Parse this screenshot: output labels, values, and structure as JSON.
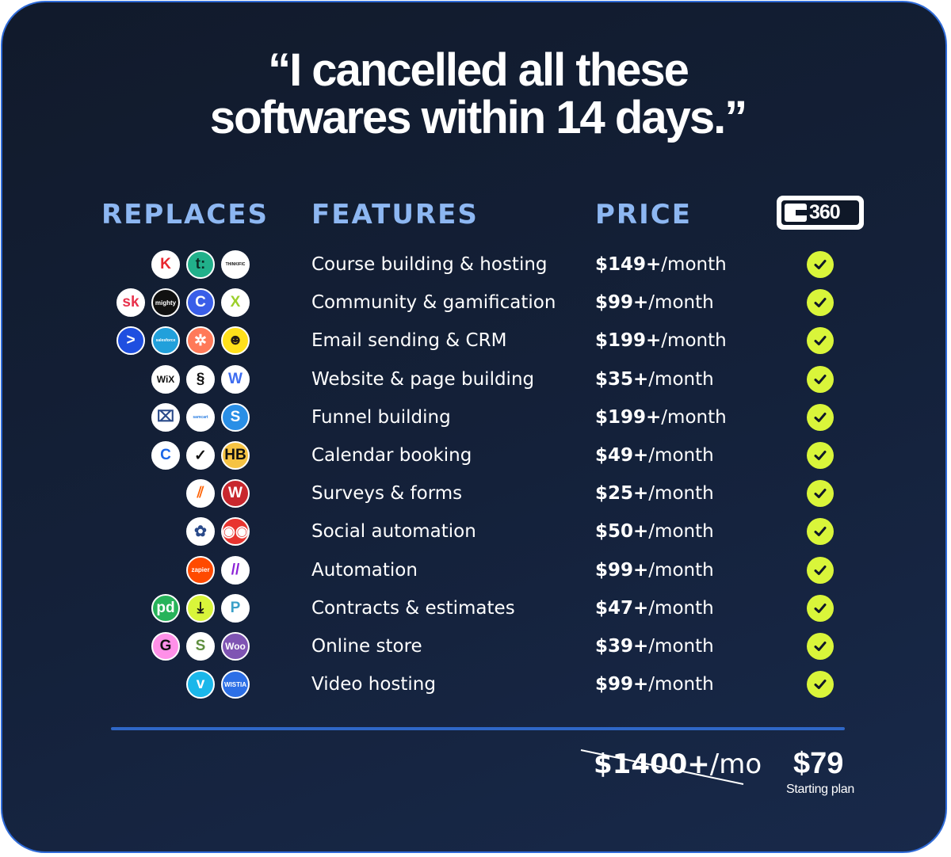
{
  "headline": {
    "line1": "“I cancelled all these",
    "line2": "softwares within 14 days.”"
  },
  "columns": {
    "replaces": "REPLACES",
    "features": "FEATURES",
    "price": "PRICE",
    "brand_logo_text": "360"
  },
  "rows": [
    {
      "feature": "Course building & hosting",
      "price_bold": "$149+",
      "price_unit": "/month",
      "icons": [
        {
          "name": "kajabi-icon",
          "text": "K",
          "bg": "#ffffff",
          "fg": "#e8262e"
        },
        {
          "name": "teachable-icon",
          "text": "t:",
          "bg": "#21b08a",
          "fg": "#0b2b24"
        },
        {
          "name": "thinkific-icon",
          "text": "THINKIFIC",
          "bg": "#ffffff",
          "fg": "#111111"
        }
      ]
    },
    {
      "feature": "Community & gamification",
      "price_bold": "$99+",
      "price_unit": "/month",
      "icons": [
        {
          "name": "skool-icon",
          "text": "sk",
          "bg": "#ffffff",
          "fg": "#e8324c"
        },
        {
          "name": "mighty-icon",
          "text": "mighty",
          "bg": "#111111",
          "fg": "#ffffff"
        },
        {
          "name": "circle-icon",
          "text": "C",
          "bg": "#3a5ee8",
          "fg": "#ffffff"
        },
        {
          "name": "xperiencify-icon",
          "text": "X",
          "bg": "#ffffff",
          "fg": "#9bcf2a"
        }
      ]
    },
    {
      "feature": "Email sending & CRM",
      "price_bold": "$199+",
      "price_unit": "/month",
      "icons": [
        {
          "name": "activecampaign-icon",
          "text": ">",
          "bg": "#1f4fe0",
          "fg": "#ffffff"
        },
        {
          "name": "salesforce-icon",
          "text": "salesforce",
          "bg": "#21a0db",
          "fg": "#ffffff"
        },
        {
          "name": "hubspot-icon",
          "text": "✲",
          "bg": "#ff7a59",
          "fg": "#ffffff"
        },
        {
          "name": "mailchimp-icon",
          "text": "☻",
          "bg": "#ffe01b",
          "fg": "#241c15"
        }
      ]
    },
    {
      "feature": "Website & page building",
      "price_bold": "$35+",
      "price_unit": "/month",
      "icons": [
        {
          "name": "wix-icon",
          "text": "WiX",
          "bg": "#ffffff",
          "fg": "#111111"
        },
        {
          "name": "squarespace-icon",
          "text": "§",
          "bg": "#ffffff",
          "fg": "#111111"
        },
        {
          "name": "webflow-icon",
          "text": "W",
          "bg": "#ffffff",
          "fg": "#3d6cf0"
        }
      ]
    },
    {
      "feature": "Funnel building",
      "price_bold": "$199+",
      "price_unit": "/month",
      "icons": [
        {
          "name": "clickfunnels-icon",
          "text": "⌧",
          "bg": "#ffffff",
          "fg": "#2a4a8a"
        },
        {
          "name": "samcart-icon",
          "text": "samcart",
          "bg": "#ffffff",
          "fg": "#2a7de1"
        },
        {
          "name": "systemeio-icon",
          "text": "S",
          "bg": "#2a8fe6",
          "fg": "#ffffff"
        }
      ]
    },
    {
      "feature": "Calendar booking",
      "price_bold": "$49+",
      "price_unit": "/month",
      "icons": [
        {
          "name": "calendly-icon",
          "text": "C",
          "bg": "#ffffff",
          "fg": "#1a66e8"
        },
        {
          "name": "acuity-icon",
          "text": "✓",
          "bg": "#ffffff",
          "fg": "#111111"
        },
        {
          "name": "honeybook-icon",
          "text": "HB",
          "bg": "#f6c343",
          "fg": "#111111"
        }
      ]
    },
    {
      "feature": "Surveys & forms",
      "price_bold": "$25+",
      "price_unit": "/month",
      "icons": [
        {
          "name": "jotform-icon",
          "text": "⫽",
          "bg": "#ffffff",
          "fg": "#ff6100"
        },
        {
          "name": "wufoo-icon",
          "text": "W",
          "bg": "#c8272d",
          "fg": "#ffffff"
        }
      ]
    },
    {
      "feature": "Social automation",
      "price_bold": "$50+",
      "price_unit": "/month",
      "icons": [
        {
          "name": "later-icon",
          "text": "✿",
          "bg": "#ffffff",
          "fg": "#2a4a8a"
        },
        {
          "name": "hootsuite-icon",
          "text": "◉◉",
          "bg": "#e8342f",
          "fg": "#ffffff"
        }
      ]
    },
    {
      "feature": "Automation",
      "price_bold": "$99+",
      "price_unit": "/month",
      "icons": [
        {
          "name": "zapier-icon",
          "text": "zapier",
          "bg": "#ff4a00",
          "fg": "#ffffff"
        },
        {
          "name": "make-icon",
          "text": "//",
          "bg": "#ffffff",
          "fg": "#8a1fd6"
        }
      ]
    },
    {
      "feature": "Contracts & estimates",
      "price_bold": "$47+",
      "price_unit": "/month",
      "icons": [
        {
          "name": "pandadoc-icon",
          "text": "pd",
          "bg": "#27b35a",
          "fg": "#ffffff"
        },
        {
          "name": "download-icon",
          "text": "⤓",
          "bg": "#d9f53a",
          "fg": "#111111"
        },
        {
          "name": "proposify-icon",
          "text": "P",
          "bg": "#ffffff",
          "fg": "#3aa0c8"
        }
      ]
    },
    {
      "feature": "Online store",
      "price_bold": "$39+",
      "price_unit": "/month",
      "icons": [
        {
          "name": "gumroad-icon",
          "text": "G",
          "bg": "#ff90e8",
          "fg": "#111111"
        },
        {
          "name": "shopify-icon",
          "text": "S",
          "bg": "#ffffff",
          "fg": "#5e8e3e"
        },
        {
          "name": "woocommerce-icon",
          "text": "Woo",
          "bg": "#7f54b3",
          "fg": "#ffffff"
        }
      ]
    },
    {
      "feature": "Video hosting",
      "price_bold": "$99+",
      "price_unit": "/month",
      "icons": [
        {
          "name": "vimeo-icon",
          "text": "v",
          "bg": "#1ab7ea",
          "fg": "#ffffff"
        },
        {
          "name": "wistia-icon",
          "text": "WISTIA",
          "bg": "#2c6fe6",
          "fg": "#ffffff"
        }
      ]
    }
  ],
  "total": {
    "old_price_bold": "$1400+",
    "old_price_unit": "/mo",
    "new_price": "$79",
    "plan_label": "Starting plan"
  },
  "colors": {
    "accent_heading": "#8db7f2",
    "check": "#d9f53a",
    "divider": "#2f67c7",
    "background": "#14213a"
  }
}
